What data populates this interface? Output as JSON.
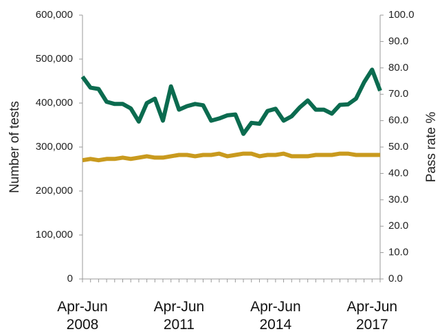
{
  "chart_data": {
    "type": "line",
    "categories": [
      "Apr-Jun 2008",
      null,
      null,
      null,
      null,
      null,
      null,
      null,
      null,
      null,
      null,
      null,
      "Apr-Jun 2011",
      null,
      null,
      null,
      null,
      null,
      null,
      null,
      null,
      null,
      null,
      null,
      "Apr-Jun 2014",
      null,
      null,
      null,
      null,
      null,
      null,
      null,
      null,
      null,
      null,
      null,
      "Apr-Jun 2017",
      null
    ],
    "series": [
      {
        "color": "#0b6b4f",
        "values": [
          460000,
          435000,
          432000,
          403000,
          398000,
          398000,
          388000,
          358000,
          400000,
          410000,
          360000,
          438000,
          385000,
          393000,
          398000,
          395000,
          360000,
          365000,
          372000,
          374000,
          330000,
          355000,
          353000,
          382000,
          387000,
          360000,
          370000,
          390000,
          406000,
          385000,
          385000,
          376000,
          396000,
          397000,
          410000,
          447000,
          476000,
          428000
        ]
      },
      {
        "color": "#c99a1e",
        "axis": "y2",
        "values": [
          45.0,
          45.5,
          45.0,
          45.5,
          45.5,
          46.0,
          45.5,
          46.0,
          46.5,
          46.0,
          46.0,
          46.5,
          47.0,
          47.0,
          46.5,
          47.0,
          47.0,
          47.5,
          46.5,
          47.0,
          47.5,
          47.5,
          46.5,
          47.0,
          47.0,
          47.5,
          46.5,
          46.5,
          46.5,
          47.0,
          47.0,
          47.0,
          47.5,
          47.5,
          47.0,
          47.0,
          47.0,
          47.0
        ]
      }
    ],
    "y_label": "Number of tests",
    "y2_label": "Pass rate %",
    "ylim": [
      0,
      600000
    ],
    "yticks": [
      0,
      {
        "value": 100000,
        "label": "100,000"
      },
      {
        "value": 200000,
        "label": "200,000"
      },
      {
        "value": 300000,
        "label": "300,000"
      },
      {
        "value": 400000,
        "label": "400,000"
      },
      {
        "value": 500000,
        "label": "500,000"
      },
      {
        "value": 600000,
        "label": "600,000"
      }
    ],
    "y2lim": [
      0,
      100
    ],
    "y2ticks": [
      {
        "value": 0,
        "label": "0.0"
      },
      {
        "value": 10,
        "label": "10.0"
      },
      {
        "value": 20,
        "label": "20.0"
      },
      {
        "value": 30,
        "label": "30.0"
      },
      {
        "value": 40,
        "label": "40.0"
      },
      {
        "value": 50,
        "label": "50.0"
      },
      {
        "value": 60,
        "label": "60.0"
      },
      {
        "value": 70,
        "label": "70.0"
      },
      {
        "value": 80,
        "label": "80.0"
      },
      {
        "value": 90,
        "label": "90.0"
      },
      {
        "value": 100,
        "label": "100.0"
      }
    ],
    "grid": false
  }
}
